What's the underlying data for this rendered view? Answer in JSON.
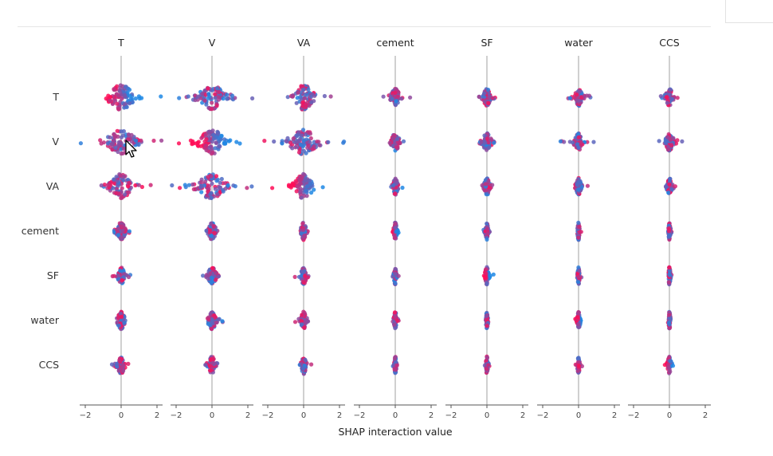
{
  "chart_data": {
    "type": "scatter",
    "subtype": "shap-interaction-beeswarm-grid",
    "features": [
      "T",
      "V",
      "VA",
      "cement",
      "SF",
      "water",
      "CCS"
    ],
    "xlabel": "SHAP interaction value",
    "xlim": [
      -2.3,
      2.3
    ],
    "xticks": [
      -2,
      0,
      2
    ],
    "tick_labels": [
      "−2",
      "0",
      "2"
    ],
    "colors": {
      "low": "#1e88e5",
      "high": "#ff0d57",
      "axis": "#999999"
    },
    "spread": [
      [
        0.42,
        0.48,
        0.34,
        0.14,
        0.12,
        0.12,
        0.12
      ],
      [
        0.48,
        0.46,
        0.5,
        0.14,
        0.15,
        0.14,
        0.14
      ],
      [
        0.36,
        0.5,
        0.32,
        0.08,
        0.09,
        0.08,
        0.08
      ],
      [
        0.15,
        0.13,
        0.09,
        0.05,
        0.04,
        0.03,
        0.03
      ],
      [
        0.11,
        0.14,
        0.09,
        0.04,
        0.06,
        0.03,
        0.03
      ],
      [
        0.12,
        0.14,
        0.09,
        0.04,
        0.03,
        0.06,
        0.03
      ],
      [
        0.12,
        0.12,
        0.08,
        0.03,
        0.03,
        0.03,
        0.06
      ]
    ]
  }
}
